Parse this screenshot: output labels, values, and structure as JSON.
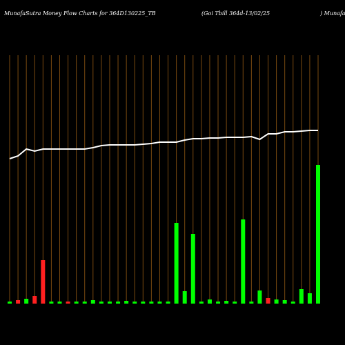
{
  "chart_data": {
    "type": "bar",
    "title": "MunafaSutra  Money Flow  Charts for 364D130225_TB",
    "subtitle": "(Goi   Tbill 364d-13/02/25",
    "title_right": ") Munafa",
    "categories": [
      null,
      null,
      null,
      null,
      null,
      null,
      null,
      null,
      null,
      null,
      null,
      null,
      null,
      null,
      null,
      null,
      null,
      null,
      null,
      null,
      null,
      null,
      null,
      null,
      null,
      null,
      null,
      null,
      null,
      null,
      null,
      null,
      null,
      null,
      null,
      null,
      null,
      null
    ],
    "ylim": [
      0,
      360
    ],
    "grid": true,
    "grid_color": "#7a4a10",
    "bars": {
      "values": [
        3,
        5,
        7,
        11,
        63,
        3,
        3,
        3,
        3,
        3,
        5,
        3,
        3,
        3,
        4,
        3,
        3,
        3,
        3,
        3,
        117,
        18,
        101,
        3,
        6,
        3,
        4,
        3,
        122,
        3,
        19,
        8,
        6,
        5,
        3,
        21,
        15,
        201
      ],
      "colors": [
        "#00ff00",
        "#ff2020",
        "#00ff00",
        "#ff2020",
        "#ff2020",
        "#00ff00",
        "#00ff00",
        "#ff2020",
        "#00ff00",
        "#00ff00",
        "#00ff00",
        "#00ff00",
        "#00ff00",
        "#00ff00",
        "#00ff00",
        "#00ff00",
        "#00ff00",
        "#00ff00",
        "#00ff00",
        "#00ff00",
        "#00ff00",
        "#00ff00",
        "#00ff00",
        "#00ff00",
        "#00ff00",
        "#00ff00",
        "#00ff00",
        "#00ff00",
        "#00ff00",
        "#00ff00",
        "#00ff00",
        "#ff2020",
        "#00ff00",
        "#00ff00",
        "#00ff00",
        "#00ff00",
        "#00ff00",
        "#00ff00"
      ]
    },
    "line": {
      "color": "#ffffff",
      "values": [
        210,
        214,
        224,
        221,
        224,
        224,
        224,
        224,
        224,
        224,
        226,
        229,
        230,
        230,
        230,
        230,
        231,
        232,
        234,
        234,
        234,
        237,
        239,
        239,
        240,
        240,
        241,
        241,
        241,
        242,
        238,
        246,
        246,
        249,
        249,
        250,
        251,
        251
      ]
    }
  }
}
